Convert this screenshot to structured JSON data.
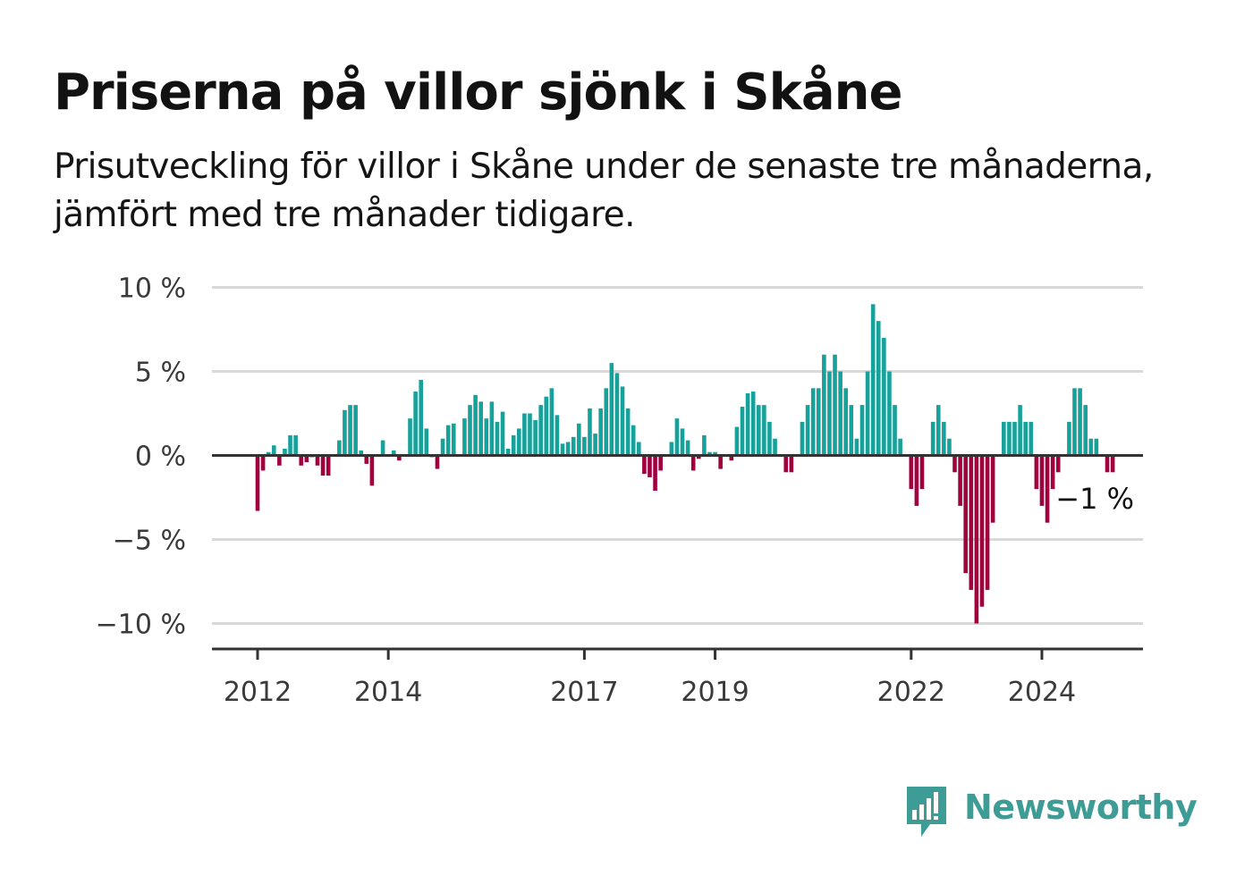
{
  "title": "Priserna på villor sjönk i Skåne",
  "subtitle": "Prisutveckling för villor i Skåne under de senaste tre månaderna, jämfört med tre månader tidigare.",
  "annotation": "−1 %",
  "brand": {
    "name": "Newsworthy",
    "color": "#3d9c96",
    "icon": "bar-chart-speech-bubble-icon"
  },
  "colors": {
    "positive": "#16a19a",
    "negative": "#a1003f",
    "grid": "#d9d9d9",
    "axis": "#333333"
  },
  "chart_data": {
    "type": "bar",
    "title": "Priserna på villor sjönk i Skåne",
    "subtitle": "Prisutveckling för villor i Skåne under de senaste tre månaderna, jämfört med tre månader tidigare.",
    "xlabel": "",
    "ylabel": "",
    "ylim": [
      -11.5,
      11
    ],
    "yticks": [
      10,
      5,
      0,
      -5,
      -10
    ],
    "ytick_labels": [
      "10 %",
      "5 %",
      "0 %",
      "−5 %",
      "−10 %"
    ],
    "xticks": [
      2012,
      2014,
      2017,
      2019,
      2022,
      2024
    ],
    "xtick_labels": [
      "2012",
      "2014",
      "2017",
      "2019",
      "2022",
      "2024"
    ],
    "grid": true,
    "legend": "none",
    "unit": "%",
    "series": [
      {
        "start": "2012-01",
        "frequency": "monthly",
        "values": [
          -3.3,
          -0.9,
          0.2,
          0.6,
          -0.6,
          0.4,
          1.2,
          1.2,
          -0.6,
          -0.4,
          -0.1,
          -0.6,
          -1.2,
          -1.2,
          0.0,
          0.9,
          2.7,
          3.0,
          3.0,
          0.3,
          -0.5,
          -1.8,
          0.0,
          0.9,
          0.0,
          0.3,
          -0.3,
          0.0,
          2.2,
          3.8,
          4.5,
          1.6,
          -0.1,
          -0.8,
          1.0,
          1.8,
          1.9,
          0.0,
          2.2,
          3.0,
          3.6,
          3.2,
          2.2,
          3.2,
          2.0,
          2.6,
          0.4,
          1.2,
          1.6,
          2.5,
          2.5,
          2.1,
          3.0,
          3.5,
          4.0,
          2.4,
          0.7,
          0.8,
          1.1,
          1.9,
          1.1,
          2.8,
          1.3,
          2.8,
          4.0,
          5.5,
          4.9,
          4.1,
          2.8,
          1.8,
          0.8,
          -1.1,
          -1.3,
          -2.1,
          -0.9,
          0.0,
          0.8,
          2.2,
          1.6,
          0.9,
          -0.9,
          -0.2,
          1.2,
          0.2,
          0.2,
          -0.8,
          0.0,
          -0.3,
          1.7,
          2.9,
          3.7,
          3.8,
          3.0,
          3.0,
          2.0,
          1.0,
          0.0,
          -1.0,
          -1.0,
          0.0,
          2.0,
          3.0,
          4.0,
          4.0,
          6.0,
          5.0,
          6.0,
          5.0,
          4.0,
          3.0,
          1.0,
          3.0,
          5.0,
          9.0,
          8.0,
          7.0,
          5.0,
          3.0,
          1.0,
          0.0,
          -2.0,
          -3.0,
          -2.0,
          0.0,
          2.0,
          3.0,
          2.0,
          1.0,
          -1.0,
          -3.0,
          -7.0,
          -8.0,
          -10.0,
          -9.0,
          -8.0,
          -4.0,
          0.0,
          2.0,
          2.0,
          2.0,
          3.0,
          2.0,
          2.0,
          -2.0,
          -3.0,
          -4.0,
          -2.0,
          -1.0,
          0.0,
          2.0,
          4.0,
          4.0,
          3.0,
          1.0,
          1.0,
          0.0,
          -1.0,
          -1.0
        ]
      }
    ]
  }
}
